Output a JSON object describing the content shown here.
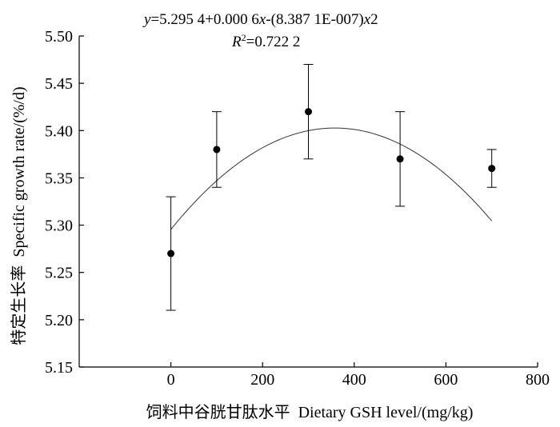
{
  "chart_data": {
    "type": "scatter",
    "equation": {
      "line1_prefix": "y",
      "line1_body": "=5.295 4+0.000 6",
      "line1_x1": "x",
      "line1_mid": "-(8.387 1E-007)",
      "line1_x2": "x",
      "line1_tail": "2",
      "line2_prefix": "R",
      "line2_sup": "2",
      "line2_body": "=0.722 2"
    },
    "xlabel": "饲料中谷胱甘肽水平  Dietary GSH level/(mg/kg)",
    "ylabel": "特定生长率  Specific growth rate/(%/d)",
    "xlim": [
      -200,
      800
    ],
    "ylim": [
      5.15,
      5.5
    ],
    "x_ticks": [
      0,
      200,
      400,
      600,
      800
    ],
    "x_tick_labels": [
      "0",
      "200",
      "400",
      "600",
      "800"
    ],
    "y_ticks": [
      5.15,
      5.2,
      5.25,
      5.3,
      5.35,
      5.4,
      5.45,
      5.5
    ],
    "y_tick_labels": [
      "5.15",
      "5.20",
      "5.25",
      "5.30",
      "5.35",
      "5.40",
      "5.45",
      "5.50"
    ],
    "points": [
      {
        "x": 0,
        "y": 5.27,
        "err": 0.06
      },
      {
        "x": 100,
        "y": 5.38,
        "err": 0.04
      },
      {
        "x": 300,
        "y": 5.42,
        "err": 0.05
      },
      {
        "x": 500,
        "y": 5.37,
        "err": 0.05
      },
      {
        "x": 700,
        "y": 5.36,
        "err": 0.02
      }
    ],
    "fit": {
      "a": 5.2954,
      "b": 0.0006,
      "c": -8.3871e-07,
      "x_start": 0,
      "x_end": 700
    },
    "grid": false,
    "colors": {
      "marker": "#000000",
      "curve": "#333333",
      "axis": "#000000"
    }
  }
}
